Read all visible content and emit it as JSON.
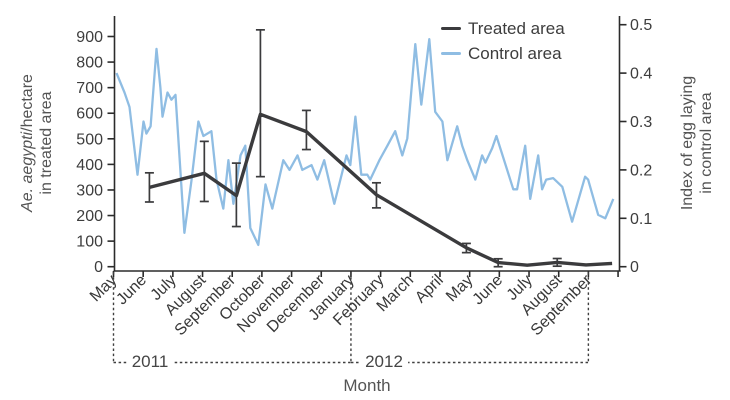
{
  "chart_data": {
    "type": "line",
    "title": "",
    "x_axis": {
      "title": "Month",
      "categories": [
        "May",
        "June",
        "July",
        "August",
        "September",
        "October",
        "November",
        "December",
        "January",
        "February",
        "March",
        "April",
        "May",
        "June",
        "July",
        "August",
        "September"
      ]
    },
    "year_groups": [
      {
        "label": "2011",
        "from_month": 0,
        "to_month": 8,
        "label_at": 1.23
      },
      {
        "label": "2012",
        "from_month": 8,
        "to_month": 16,
        "label_at": 9.11
      }
    ],
    "left_axis": {
      "title_italic": "Ae. aegypti",
      "title_rest": "/hectare",
      "title_line2": "in treated area",
      "min": 0,
      "max": 900,
      "tick_step": 100,
      "ticks": [
        0,
        100,
        200,
        300,
        400,
        500,
        600,
        700,
        800,
        900
      ]
    },
    "right_axis": {
      "title_line1": "Index of egg laying",
      "title_line2": "in control area",
      "min": 0,
      "max": 0.5,
      "tick_step": 0.1,
      "ticks": [
        0,
        0.1,
        0.2,
        0.3,
        0.4,
        0.5
      ]
    },
    "legend_position": "top-right-inside",
    "series": [
      {
        "name": "Treated area",
        "axis": "left",
        "color": "#3b3b3d",
        "points": [
          {
            "m": 1.21,
            "v": 310,
            "lo": 253,
            "hi": 367
          },
          {
            "m": 3.06,
            "v": 365,
            "lo": 255,
            "hi": 490
          },
          {
            "m": 4.14,
            "v": 278,
            "lo": 157,
            "hi": 405
          },
          {
            "m": 4.95,
            "v": 596,
            "lo": 352,
            "hi": 926
          },
          {
            "m": 6.5,
            "v": 528,
            "lo": 458,
            "hi": 611
          },
          {
            "m": 8.86,
            "v": 281,
            "lo": 230,
            "hi": 328
          },
          {
            "m": 11.89,
            "v": 74,
            "lo": 55,
            "hi": 91
          },
          {
            "m": 12.96,
            "v": 16,
            "lo": 0,
            "hi": 31
          },
          {
            "m": 13.94,
            "v": 6
          },
          {
            "m": 14.95,
            "v": 17,
            "lo": 2,
            "hi": 32
          },
          {
            "m": 15.92,
            "v": 7
          },
          {
            "m": 16.8,
            "v": 13
          }
        ]
      },
      {
        "name": "Control area",
        "axis": "right",
        "color": "#8fbde3",
        "points": [
          [
            0.1,
            0.4
          ],
          [
            0.37,
            0.36
          ],
          [
            0.54,
            0.33
          ],
          [
            0.81,
            0.19
          ],
          [
            1.01,
            0.3
          ],
          [
            1.11,
            0.275
          ],
          [
            1.25,
            0.29
          ],
          [
            1.45,
            0.45
          ],
          [
            1.58,
            0.37
          ],
          [
            1.65,
            0.31
          ],
          [
            1.82,
            0.36
          ],
          [
            1.95,
            0.345
          ],
          [
            2.09,
            0.355
          ],
          [
            2.39,
            0.07
          ],
          [
            2.63,
            0.18
          ],
          [
            2.86,
            0.3
          ],
          [
            3.03,
            0.27
          ],
          [
            3.3,
            0.28
          ],
          [
            3.47,
            0.18
          ],
          [
            3.7,
            0.12
          ],
          [
            3.87,
            0.22
          ],
          [
            4.04,
            0.13
          ],
          [
            4.28,
            0.23
          ],
          [
            4.44,
            0.25
          ],
          [
            4.61,
            0.08
          ],
          [
            4.88,
            0.045
          ],
          [
            5.12,
            0.17
          ],
          [
            5.35,
            0.12
          ],
          [
            5.72,
            0.22
          ],
          [
            5.93,
            0.2
          ],
          [
            6.2,
            0.23
          ],
          [
            6.36,
            0.2
          ],
          [
            6.67,
            0.21
          ],
          [
            6.87,
            0.18
          ],
          [
            7.1,
            0.22
          ],
          [
            7.44,
            0.13
          ],
          [
            7.85,
            0.23
          ],
          [
            7.98,
            0.21
          ],
          [
            8.15,
            0.31
          ],
          [
            8.35,
            0.19
          ],
          [
            8.55,
            0.19
          ],
          [
            8.65,
            0.18
          ],
          [
            8.96,
            0.22
          ],
          [
            9.23,
            0.25
          ],
          [
            9.49,
            0.28
          ],
          [
            9.73,
            0.23
          ],
          [
            9.9,
            0.265
          ],
          [
            10.17,
            0.46
          ],
          [
            10.37,
            0.335
          ],
          [
            10.64,
            0.47
          ],
          [
            10.84,
            0.32
          ],
          [
            11.08,
            0.3
          ],
          [
            11.25,
            0.22
          ],
          [
            11.58,
            0.29
          ],
          [
            11.75,
            0.25
          ],
          [
            11.92,
            0.22
          ],
          [
            12.19,
            0.18
          ],
          [
            12.42,
            0.23
          ],
          [
            12.53,
            0.215
          ],
          [
            12.76,
            0.245
          ],
          [
            12.9,
            0.27
          ],
          [
            13.47,
            0.16
          ],
          [
            13.6,
            0.16
          ],
          [
            13.87,
            0.25
          ],
          [
            14.04,
            0.14
          ],
          [
            14.31,
            0.23
          ],
          [
            14.44,
            0.16
          ],
          [
            14.58,
            0.18
          ],
          [
            14.81,
            0.183
          ],
          [
            15.12,
            0.165
          ],
          [
            15.45,
            0.093
          ],
          [
            15.89,
            0.186
          ],
          [
            15.99,
            0.18
          ],
          [
            16.33,
            0.107
          ],
          [
            16.57,
            0.1
          ],
          [
            16.84,
            0.14
          ]
        ]
      }
    ]
  }
}
